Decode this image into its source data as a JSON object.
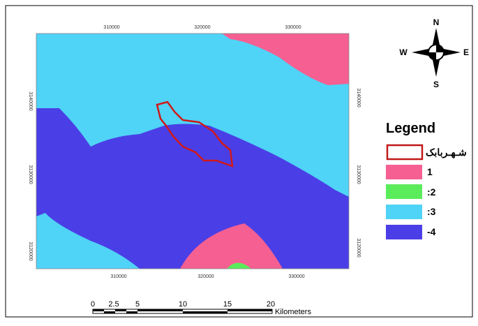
{
  "map": {
    "coords": {
      "top": [
        "310000",
        "320000",
        "330000"
      ],
      "bottom": [
        "310000",
        "320000",
        "330000"
      ],
      "left": [
        "3140000",
        "3130000",
        "3120000"
      ],
      "right": [
        "3140000",
        "3130000",
        "3120000"
      ]
    },
    "compass": {
      "north": "N",
      "east": "E",
      "south": "S",
      "west": "W"
    },
    "legend": {
      "title": "Legend",
      "items": [
        "شـهـربابک",
        "1",
        ":2",
        ":3",
        "-4"
      ]
    },
    "scale": {
      "labels": [
        "0",
        "2.5",
        "5",
        "10",
        "15",
        "20"
      ],
      "unit": "Kilometers"
    }
  }
}
